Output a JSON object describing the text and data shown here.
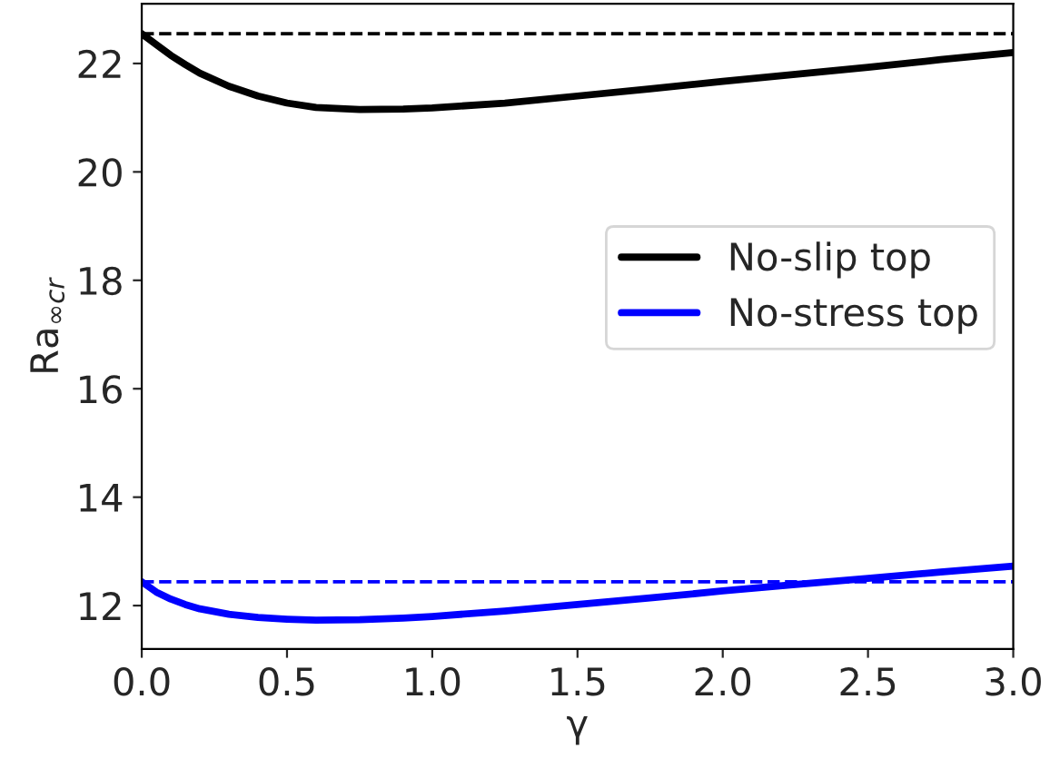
{
  "chart_data": {
    "type": "line",
    "xlabel": "γ",
    "ylabel": "Ra$_{∞cr}$",
    "x": [
      0,
      0.05,
      0.1,
      0.15,
      0.2,
      0.3,
      0.4,
      0.5,
      0.6,
      0.75,
      0.9,
      1.0,
      1.25,
      1.5,
      1.75,
      2.0,
      2.25,
      2.5,
      2.75,
      3.0
    ],
    "series": [
      {
        "name": "No-slip top",
        "color": "#000000",
        "values": [
          22.55,
          22.35,
          22.15,
          21.98,
          21.82,
          21.58,
          21.4,
          21.27,
          21.19,
          21.15,
          21.16,
          21.18,
          21.27,
          21.4,
          21.53,
          21.67,
          21.8,
          21.93,
          22.07,
          22.2
        ]
      },
      {
        "name": "No-stress top",
        "color": "#0000ff",
        "values": [
          12.44,
          12.25,
          12.12,
          12.02,
          11.94,
          11.84,
          11.78,
          11.75,
          11.73,
          11.74,
          11.77,
          11.8,
          11.9,
          12.02,
          12.14,
          12.27,
          12.39,
          12.5,
          12.62,
          12.73
        ]
      }
    ],
    "ref_lines": [
      {
        "axis": "y",
        "value": 22.55,
        "label": null,
        "color": "#000000",
        "line_style": "dashed"
      },
      {
        "axis": "y",
        "value": 12.44,
        "label": null,
        "color": "#0000ff",
        "line_style": "dashed"
      }
    ],
    "xlim": [
      0,
      3
    ],
    "xticks": [
      {
        "value": 0,
        "label": "0.0"
      },
      {
        "value": 0.5,
        "label": "0.5"
      },
      {
        "value": 1,
        "label": "1.0"
      },
      {
        "value": 1.5,
        "label": "1.5"
      },
      {
        "value": 2,
        "label": "2.0"
      },
      {
        "value": 2.5,
        "label": "2.5"
      },
      {
        "value": 3,
        "label": "3.0"
      }
    ],
    "ylim": [
      11.2,
      23.1
    ],
    "yticks": [
      12,
      14,
      16,
      18,
      20,
      22
    ],
    "grid": false,
    "legend": "right",
    "marker": "none",
    "line_style": "solid"
  }
}
